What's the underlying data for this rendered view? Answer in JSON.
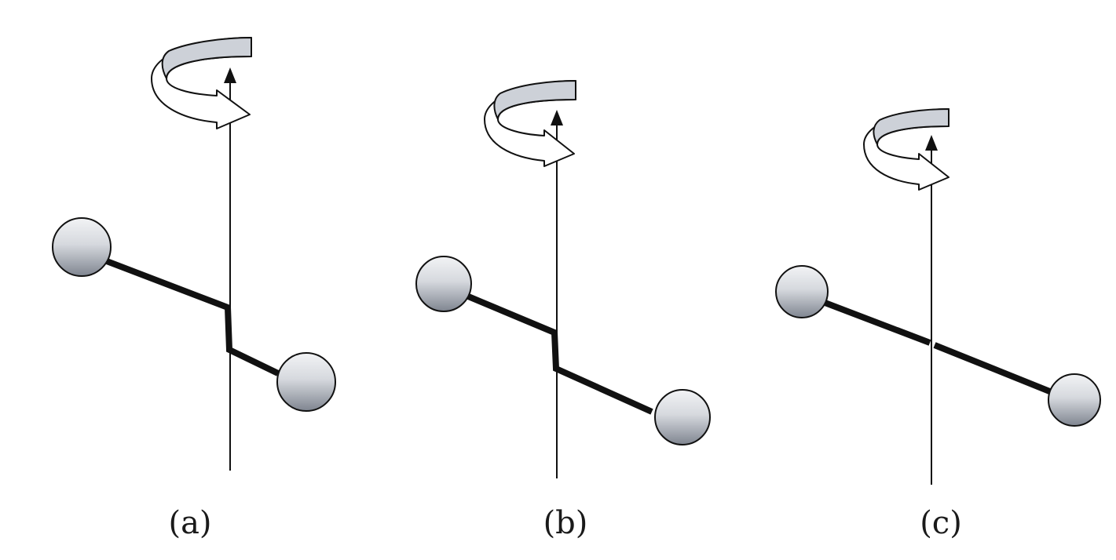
{
  "figure": {
    "panels": [
      {
        "id": "a",
        "label": "(a)"
      },
      {
        "id": "b",
        "label": "(b)"
      },
      {
        "id": "c",
        "label": "(c)"
      }
    ]
  },
  "colors": {
    "ink": "#111111",
    "arrow_band": "#cdd1d8",
    "ball_light": "#f2f3f5",
    "ball_dark": "#7f8590"
  },
  "icons": [
    "rotation-arrow-icon",
    "axis-arrowhead-icon",
    "mass-sphere-icon"
  ]
}
